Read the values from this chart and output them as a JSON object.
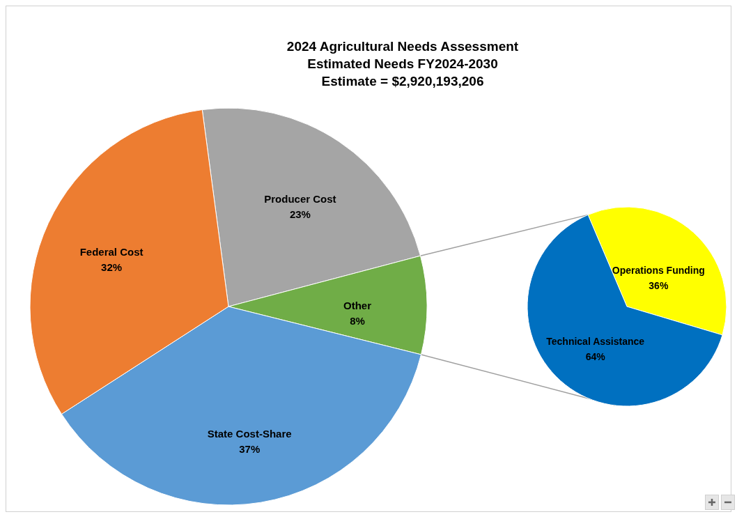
{
  "chart_data": [
    {
      "type": "pie",
      "title": "2024 Agricultural Needs Assessment\nEstimated Needs FY2024-2030\nEstimate = $2,920,193,206",
      "categories": [
        "Producer Cost",
        "Other",
        "State Cost-Share",
        "Federal Cost"
      ],
      "values": [
        23,
        8,
        37,
        32
      ],
      "colors": [
        "#a5a5a5",
        "#70ad47",
        "#5b9bd5",
        "#ed7d31"
      ],
      "value_labels": [
        "23%",
        "8%",
        "37%",
        "32%"
      ]
    },
    {
      "type": "pie",
      "categories": [
        "Operations Funding",
        "Technical Assistance"
      ],
      "values": [
        36,
        64
      ],
      "colors": [
        "#ffff00",
        "#0070c0"
      ],
      "value_labels": [
        "36%",
        "64%"
      ]
    }
  ]
}
